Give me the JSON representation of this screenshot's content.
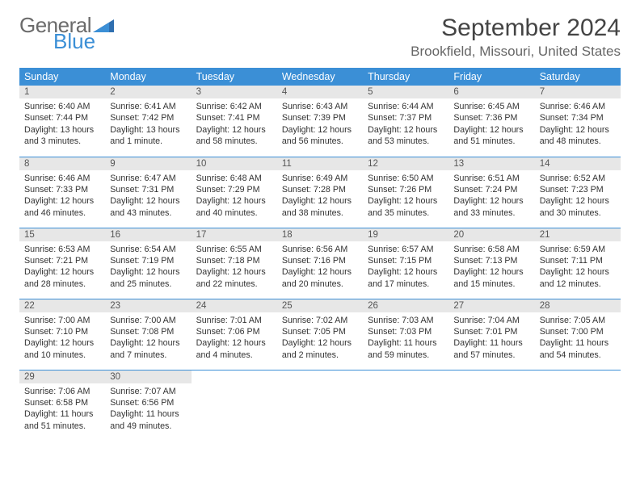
{
  "logo": {
    "word1": "General",
    "word2": "Blue"
  },
  "title": "September 2024",
  "location": "Brookfield, Missouri, United States",
  "colors": {
    "header_bg": "#3b8fd6",
    "header_text": "#ffffff",
    "daynum_bg": "#e7e7e7",
    "row_border": "#3b8fd6",
    "logo_gray": "#6b6b6b",
    "logo_blue": "#3b8fd6"
  },
  "weekdays": [
    "Sunday",
    "Monday",
    "Tuesday",
    "Wednesday",
    "Thursday",
    "Friday",
    "Saturday"
  ],
  "days": [
    {
      "n": "1",
      "sr": "Sunrise: 6:40 AM",
      "ss": "Sunset: 7:44 PM",
      "dl": "Daylight: 13 hours and 3 minutes."
    },
    {
      "n": "2",
      "sr": "Sunrise: 6:41 AM",
      "ss": "Sunset: 7:42 PM",
      "dl": "Daylight: 13 hours and 1 minute."
    },
    {
      "n": "3",
      "sr": "Sunrise: 6:42 AM",
      "ss": "Sunset: 7:41 PM",
      "dl": "Daylight: 12 hours and 58 minutes."
    },
    {
      "n": "4",
      "sr": "Sunrise: 6:43 AM",
      "ss": "Sunset: 7:39 PM",
      "dl": "Daylight: 12 hours and 56 minutes."
    },
    {
      "n": "5",
      "sr": "Sunrise: 6:44 AM",
      "ss": "Sunset: 7:37 PM",
      "dl": "Daylight: 12 hours and 53 minutes."
    },
    {
      "n": "6",
      "sr": "Sunrise: 6:45 AM",
      "ss": "Sunset: 7:36 PM",
      "dl": "Daylight: 12 hours and 51 minutes."
    },
    {
      "n": "7",
      "sr": "Sunrise: 6:46 AM",
      "ss": "Sunset: 7:34 PM",
      "dl": "Daylight: 12 hours and 48 minutes."
    },
    {
      "n": "8",
      "sr": "Sunrise: 6:46 AM",
      "ss": "Sunset: 7:33 PM",
      "dl": "Daylight: 12 hours and 46 minutes."
    },
    {
      "n": "9",
      "sr": "Sunrise: 6:47 AM",
      "ss": "Sunset: 7:31 PM",
      "dl": "Daylight: 12 hours and 43 minutes."
    },
    {
      "n": "10",
      "sr": "Sunrise: 6:48 AM",
      "ss": "Sunset: 7:29 PM",
      "dl": "Daylight: 12 hours and 40 minutes."
    },
    {
      "n": "11",
      "sr": "Sunrise: 6:49 AM",
      "ss": "Sunset: 7:28 PM",
      "dl": "Daylight: 12 hours and 38 minutes."
    },
    {
      "n": "12",
      "sr": "Sunrise: 6:50 AM",
      "ss": "Sunset: 7:26 PM",
      "dl": "Daylight: 12 hours and 35 minutes."
    },
    {
      "n": "13",
      "sr": "Sunrise: 6:51 AM",
      "ss": "Sunset: 7:24 PM",
      "dl": "Daylight: 12 hours and 33 minutes."
    },
    {
      "n": "14",
      "sr": "Sunrise: 6:52 AM",
      "ss": "Sunset: 7:23 PM",
      "dl": "Daylight: 12 hours and 30 minutes."
    },
    {
      "n": "15",
      "sr": "Sunrise: 6:53 AM",
      "ss": "Sunset: 7:21 PM",
      "dl": "Daylight: 12 hours and 28 minutes."
    },
    {
      "n": "16",
      "sr": "Sunrise: 6:54 AM",
      "ss": "Sunset: 7:19 PM",
      "dl": "Daylight: 12 hours and 25 minutes."
    },
    {
      "n": "17",
      "sr": "Sunrise: 6:55 AM",
      "ss": "Sunset: 7:18 PM",
      "dl": "Daylight: 12 hours and 22 minutes."
    },
    {
      "n": "18",
      "sr": "Sunrise: 6:56 AM",
      "ss": "Sunset: 7:16 PM",
      "dl": "Daylight: 12 hours and 20 minutes."
    },
    {
      "n": "19",
      "sr": "Sunrise: 6:57 AM",
      "ss": "Sunset: 7:15 PM",
      "dl": "Daylight: 12 hours and 17 minutes."
    },
    {
      "n": "20",
      "sr": "Sunrise: 6:58 AM",
      "ss": "Sunset: 7:13 PM",
      "dl": "Daylight: 12 hours and 15 minutes."
    },
    {
      "n": "21",
      "sr": "Sunrise: 6:59 AM",
      "ss": "Sunset: 7:11 PM",
      "dl": "Daylight: 12 hours and 12 minutes."
    },
    {
      "n": "22",
      "sr": "Sunrise: 7:00 AM",
      "ss": "Sunset: 7:10 PM",
      "dl": "Daylight: 12 hours and 10 minutes."
    },
    {
      "n": "23",
      "sr": "Sunrise: 7:00 AM",
      "ss": "Sunset: 7:08 PM",
      "dl": "Daylight: 12 hours and 7 minutes."
    },
    {
      "n": "24",
      "sr": "Sunrise: 7:01 AM",
      "ss": "Sunset: 7:06 PM",
      "dl": "Daylight: 12 hours and 4 minutes."
    },
    {
      "n": "25",
      "sr": "Sunrise: 7:02 AM",
      "ss": "Sunset: 7:05 PM",
      "dl": "Daylight: 12 hours and 2 minutes."
    },
    {
      "n": "26",
      "sr": "Sunrise: 7:03 AM",
      "ss": "Sunset: 7:03 PM",
      "dl": "Daylight: 11 hours and 59 minutes."
    },
    {
      "n": "27",
      "sr": "Sunrise: 7:04 AM",
      "ss": "Sunset: 7:01 PM",
      "dl": "Daylight: 11 hours and 57 minutes."
    },
    {
      "n": "28",
      "sr": "Sunrise: 7:05 AM",
      "ss": "Sunset: 7:00 PM",
      "dl": "Daylight: 11 hours and 54 minutes."
    },
    {
      "n": "29",
      "sr": "Sunrise: 7:06 AM",
      "ss": "Sunset: 6:58 PM",
      "dl": "Daylight: 11 hours and 51 minutes."
    },
    {
      "n": "30",
      "sr": "Sunrise: 7:07 AM",
      "ss": "Sunset: 6:56 PM",
      "dl": "Daylight: 11 hours and 49 minutes."
    }
  ]
}
